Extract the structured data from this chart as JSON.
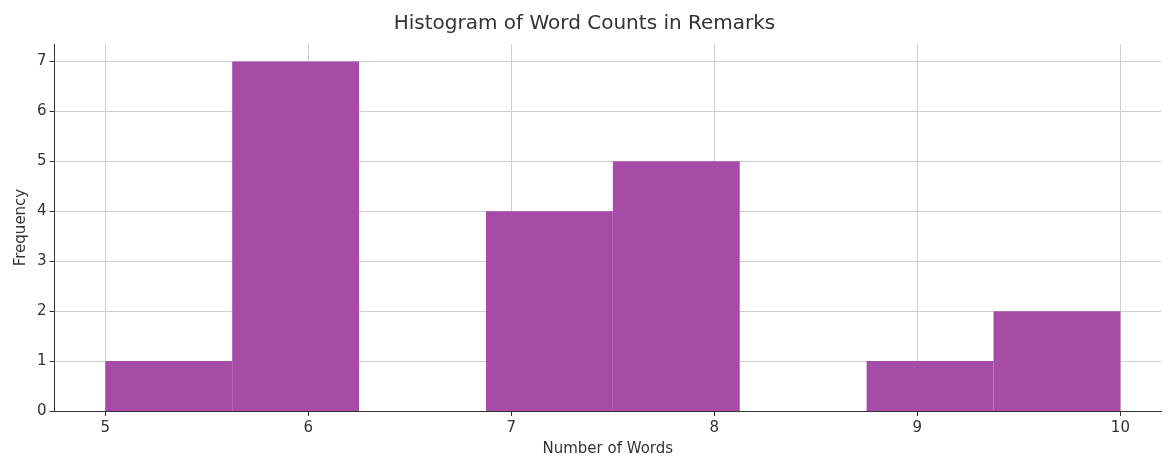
{
  "chart_data": {
    "type": "histogram",
    "title": "Histogram of Word Counts in Remarks",
    "xlabel": "Number of Words",
    "ylabel": "Frequency",
    "bins": [
      5,
      5.625,
      6.25,
      6.875,
      7.5,
      8.125,
      8.75,
      9.375,
      10
    ],
    "values": [
      1,
      7,
      0,
      4,
      5,
      0,
      1,
      2
    ],
    "color": "#a64ca6",
    "xlim": [
      4.75,
      10.2
    ],
    "xticks": [
      5,
      6,
      7,
      8,
      9,
      10
    ],
    "ylim": [
      0,
      7.35
    ],
    "yticks": [
      0,
      1,
      2,
      3,
      4,
      5,
      6,
      7
    ],
    "grid": true
  }
}
